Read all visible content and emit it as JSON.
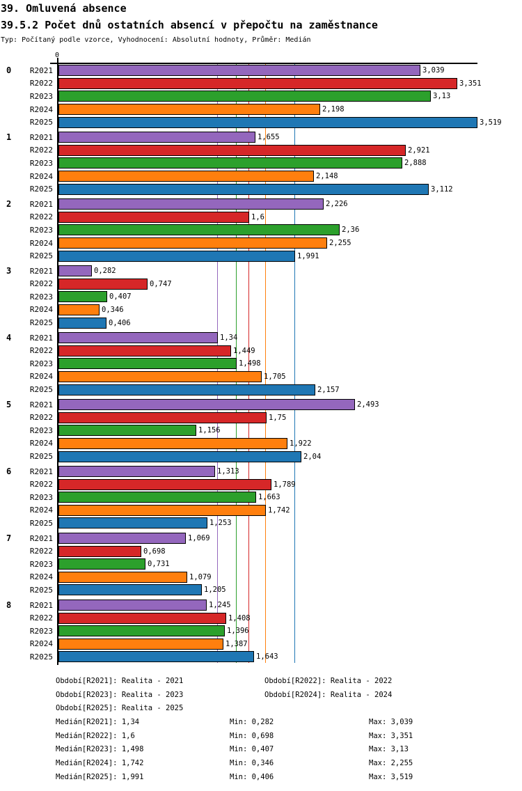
{
  "header": {
    "title": "39. Omluvená absence",
    "subtitle": "39.5.2 Počet dnů ostatních absencí v přepočtu na zaměstnance",
    "meta": "Typ: Počítaný podle vzorce, Vyhodnocení: Absolutní hodnoty, Průměr: Medián"
  },
  "chart_data": {
    "type": "bar",
    "orientation": "horizontal",
    "decimal_separator": ",",
    "axis": {
      "origin_label": "0",
      "min": 0,
      "max": 3.519,
      "grid": false
    },
    "series_labels": [
      "R2021",
      "R2022",
      "R2023",
      "R2024",
      "R2025"
    ],
    "series_colors": [
      "#9467bd",
      "#d62728",
      "#2ca02c",
      "#ff7f0e",
      "#1f77b4"
    ],
    "groups": [
      {
        "label": "0",
        "values": [
          3.039,
          3.351,
          3.13,
          2.198,
          3.519
        ]
      },
      {
        "label": "1",
        "values": [
          1.655,
          2.921,
          2.888,
          2.148,
          3.112
        ]
      },
      {
        "label": "2",
        "values": [
          2.226,
          1.6,
          2.36,
          2.255,
          1.991
        ]
      },
      {
        "label": "3",
        "values": [
          0.282,
          0.747,
          0.407,
          0.346,
          0.406
        ]
      },
      {
        "label": "4",
        "values": [
          1.34,
          1.449,
          1.498,
          1.705,
          2.157
        ]
      },
      {
        "label": "5",
        "values": [
          2.493,
          1.75,
          1.156,
          1.922,
          2.04
        ]
      },
      {
        "label": "6",
        "values": [
          1.313,
          1.789,
          1.663,
          1.742,
          1.253
        ]
      },
      {
        "label": "7",
        "values": [
          1.069,
          0.698,
          0.731,
          1.079,
          1.205
        ]
      },
      {
        "label": "8",
        "values": [
          1.245,
          1.408,
          1.396,
          1.387,
          1.643
        ]
      }
    ],
    "median_lines": [
      {
        "series": "R2021",
        "value": 1.34,
        "color": "#9467bd"
      },
      {
        "series": "R2022",
        "value": 1.6,
        "color": "#d62728"
      },
      {
        "series": "R2023",
        "value": 1.498,
        "color": "#2ca02c"
      },
      {
        "series": "R2024",
        "value": 1.742,
        "color": "#ff7f0e"
      },
      {
        "series": "R2025",
        "value": 1.991,
        "color": "#1f77b4"
      }
    ]
  },
  "legend": {
    "period_rows": [
      [
        "Období[R2021]: Realita - 2021",
        "Období[R2022]: Realita - 2022"
      ],
      [
        "Období[R2023]: Realita - 2023",
        "Období[R2024]: Realita - 2024"
      ],
      [
        "Období[R2025]: Realita - 2025",
        ""
      ]
    ],
    "stats_rows": [
      [
        "Medián[R2021]: 1,34",
        "Min: 0,282",
        "Max: 3,039"
      ],
      [
        "Medián[R2022]: 1,6",
        "Min: 0,698",
        "Max: 3,351"
      ],
      [
        "Medián[R2023]: 1,498",
        "Min: 0,407",
        "Max: 3,13"
      ],
      [
        "Medián[R2024]: 1,742",
        "Min: 0,346",
        "Max: 2,255"
      ],
      [
        "Medián[R2025]: 1,991",
        "Min: 0,406",
        "Max: 3,519"
      ]
    ]
  }
}
